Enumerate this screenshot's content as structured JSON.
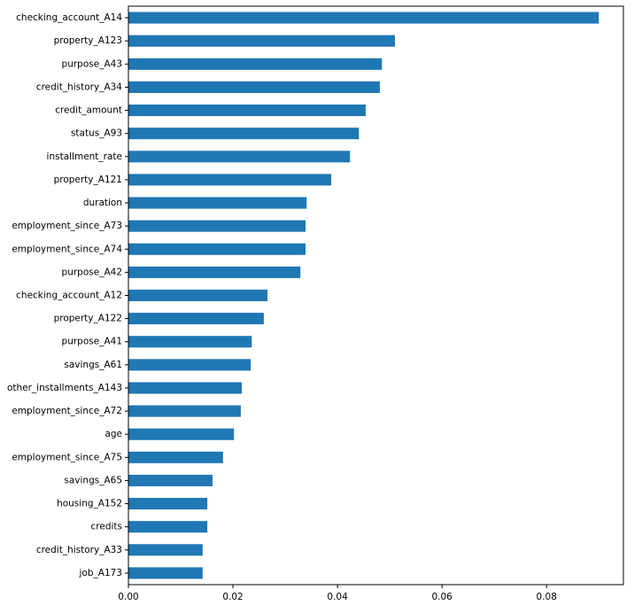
{
  "chart_data": {
    "type": "barh",
    "color": "#1f77b4",
    "categories": [
      "checking_account_A14",
      "property_A123",
      "purpose_A43",
      "credit_history_A34",
      "credit_amount",
      "status_A93",
      "installment_rate",
      "property_A121",
      "duration",
      "employment_since_A73",
      "employment_since_A74",
      "purpose_A42",
      "checking_account_A12",
      "property_A122",
      "purpose_A41",
      "savings_A61",
      "other_installments_A143",
      "employment_since_A72",
      "age",
      "employment_since_A75",
      "savings_A65",
      "housing_A152",
      "credits",
      "credit_history_A33",
      "job_A173"
    ],
    "values": [
      0.09,
      0.051,
      0.0485,
      0.0481,
      0.0454,
      0.0441,
      0.0424,
      0.0388,
      0.0341,
      0.0339,
      0.0339,
      0.0329,
      0.0266,
      0.0259,
      0.0236,
      0.0234,
      0.0217,
      0.0215,
      0.0202,
      0.0181,
      0.0161,
      0.0151,
      0.0151,
      0.0142,
      0.0142
    ],
    "xlim": [
      0,
      0.0947
    ],
    "xticks": [
      {
        "value": 0,
        "label": "0.00"
      },
      {
        "value": 0.02,
        "label": "0.02"
      },
      {
        "value": 0.04,
        "label": "0.04"
      },
      {
        "value": 0.06,
        "label": "0.06"
      },
      {
        "value": 0.08,
        "label": "0.08"
      }
    ]
  }
}
